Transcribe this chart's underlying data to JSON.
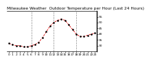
{
  "title": "Milwaukee Weather  Outdoor Temperature per Hour (Last 24 Hours)",
  "x_hours": [
    0,
    1,
    2,
    3,
    4,
    5,
    6,
    7,
    8,
    9,
    10,
    11,
    12,
    13,
    14,
    15,
    16,
    17,
    18,
    19,
    20,
    21,
    22,
    23
  ],
  "temperatures": [
    32,
    31,
    30,
    30,
    29,
    29,
    30,
    31,
    33,
    37,
    42,
    47,
    50,
    52,
    53,
    52,
    48,
    44,
    40,
    38,
    38,
    39,
    40,
    41
  ],
  "line_color": "#dd0000",
  "marker_color": "#000000",
  "bg_color": "#ffffff",
  "plot_bg": "#ffffff",
  "grid_color": "#888888",
  "ylim": [
    25,
    60
  ],
  "ytick_values": [
    30,
    35,
    40,
    45,
    50,
    55
  ],
  "title_fontsize": 4.2,
  "tick_fontsize": 3.2
}
